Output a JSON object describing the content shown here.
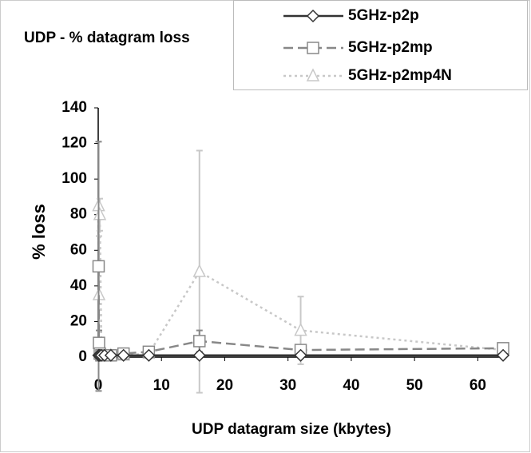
{
  "chart_data": {
    "type": "line",
    "title": "UDP - % datagram loss",
    "x_label": "UDP datagram size (kbytes)",
    "y_label": "% loss",
    "x": [
      0.0625,
      0.125,
      0.25,
      0.5,
      1,
      2,
      4,
      8,
      16,
      32,
      64
    ],
    "series": [
      {
        "name": "5GHz-p2p",
        "color": "#333333",
        "marker": "diamond",
        "dash": "solid",
        "values": [
          1,
          1,
          1,
          1,
          1,
          1,
          1,
          1,
          1,
          1,
          1
        ],
        "errors": [
          null,
          null,
          null,
          null,
          null,
          null,
          null,
          null,
          null,
          null,
          null
        ]
      },
      {
        "name": "5GHz-p2mp",
        "color": "#888888",
        "marker": "square",
        "dash": "dashed",
        "values": [
          51,
          8,
          2,
          1,
          1,
          1,
          2,
          3,
          9,
          4,
          5
        ],
        "errors": [
          70,
          7,
          null,
          null,
          null,
          null,
          null,
          null,
          6,
          null,
          null
        ]
      },
      {
        "name": "5GHz-p2mp4N",
        "color": "#c8c8c8",
        "marker": "triangle",
        "dash": "dotted",
        "values": [
          85,
          35,
          80,
          5,
          2,
          1,
          1,
          2,
          48,
          15,
          4
        ],
        "errors": [
          36,
          33,
          9,
          null,
          null,
          null,
          null,
          null,
          68,
          19,
          null
        ]
      }
    ],
    "xlim": [
      0,
      65
    ],
    "ylim": [
      0,
      140
    ],
    "xticks": [
      0,
      10,
      20,
      30,
      40,
      50,
      60
    ],
    "yticks": [
      0,
      20,
      40,
      60,
      80,
      100,
      120,
      140
    ],
    "grid": false,
    "legend": "top-right"
  }
}
